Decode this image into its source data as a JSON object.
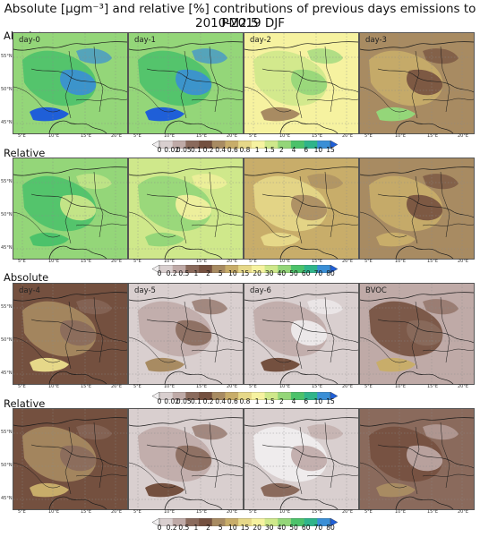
{
  "title_line1": "Absolute [µgm⁻³] and relative [%] contributions of previous days emissions to PM2.5",
  "title_line2": "2010-2019 DJF",
  "sections": [
    "Absolute",
    "Relative",
    "Absolute",
    "Relative"
  ],
  "panel_labels": {
    "r0c0": "day-0",
    "r0c1": "day-1",
    "r0c2": "day-2",
    "r0c3": "day-3",
    "r2c0": "day-4",
    "r2c1": "day-5",
    "r2c2": "day-6",
    "r2c3": "BVOC"
  },
  "lat_ticks": [
    "55°N",
    "50°N",
    "45°N"
  ],
  "lon_ticks": [
    "5°E",
    "10°E",
    "15°E",
    "20°E"
  ],
  "colorbar_absolute": [
    "0",
    "0.02",
    "0.05",
    "0.1",
    "0.2",
    "0.4",
    "0.6",
    "0.8",
    "1",
    "1.5",
    "2",
    "4",
    "6",
    "10",
    "15"
  ],
  "colorbar_relative": [
    "0",
    "0.2",
    "0.5",
    "1",
    "2",
    "5",
    "10",
    "15",
    "20",
    "30",
    "40",
    "50",
    "60",
    "70",
    "80"
  ],
  "colorbar_colors": [
    "#f1eeef",
    "#d9cfcf",
    "#bfaaa7",
    "#8a6a5c",
    "#74503f",
    "#a88b62",
    "#c8ad6a",
    "#e6d889",
    "#f6f2a0",
    "#cfe88b",
    "#94d679",
    "#4cc26a",
    "#2fb48a",
    "#3a8fd6",
    "#1f5fd8"
  ]
}
